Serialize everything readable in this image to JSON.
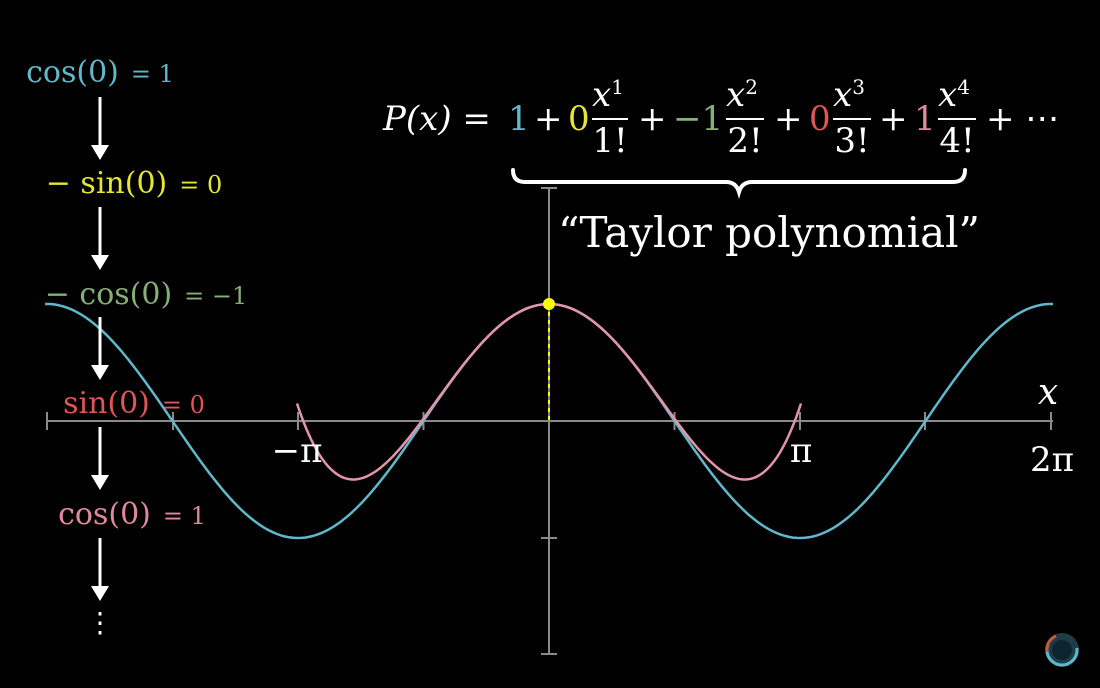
{
  "colors": {
    "background": "#000000",
    "axis": "#8a8a8a",
    "text": "#ffffff",
    "cos": "#5fb8cc",
    "sin_neg": "#e6e62e",
    "cos_neg": "#86b074",
    "sin": "#e05555",
    "cos_pink": "#e1879f",
    "taylor_curve": "#e593aa",
    "point": "#ffff00",
    "brace": "#ffffff",
    "arrow": "#ffffff"
  },
  "derivatives": [
    {
      "expr": "cos(0)",
      "eq": "= 1",
      "color_key": "cos"
    },
    {
      "expr": "− sin(0)",
      "eq": "= 0",
      "color_key": "sin_neg"
    },
    {
      "expr": "− cos(0)",
      "eq": "= −1",
      "color_key": "cos_neg"
    },
    {
      "expr": "sin(0)",
      "eq": "= 0",
      "color_key": "sin"
    },
    {
      "expr": "cos(0)",
      "eq": "= 1",
      "color_key": "cos_pink"
    }
  ],
  "ellipsis": "⋮",
  "formula": {
    "lhs": "P(x) =",
    "c0": "1",
    "plus": "+",
    "c1": "0",
    "c2": "−1",
    "c3": "0",
    "c4": "1",
    "x": "x",
    "exp1": "1",
    "exp2": "2",
    "exp3": "3",
    "exp4": "4",
    "den1": "1!",
    "den2": "2!",
    "den3": "3!",
    "den4": "4!",
    "tail": "+ ⋯"
  },
  "annotation": "“Taylor polynomial”",
  "axes": {
    "x_label": "x",
    "tick_neg_pi": "−π",
    "tick_pi": "π",
    "tick_2pi": "2π",
    "x_range": [
      -4,
      4
    ],
    "y_range": [
      -2,
      2
    ]
  },
  "chart_data": {
    "type": "line",
    "series": [
      {
        "function": "cos(x)",
        "x_range": [
          -8.0,
          8.0
        ],
        "color_key": "cos"
      },
      {
        "function": "1 - x^2/2 + x^4/24",
        "x_range": [
          -3.95,
          3.95
        ],
        "color_key": "taylor_curve"
      }
    ],
    "point": {
      "x": 0,
      "y": 1
    }
  }
}
